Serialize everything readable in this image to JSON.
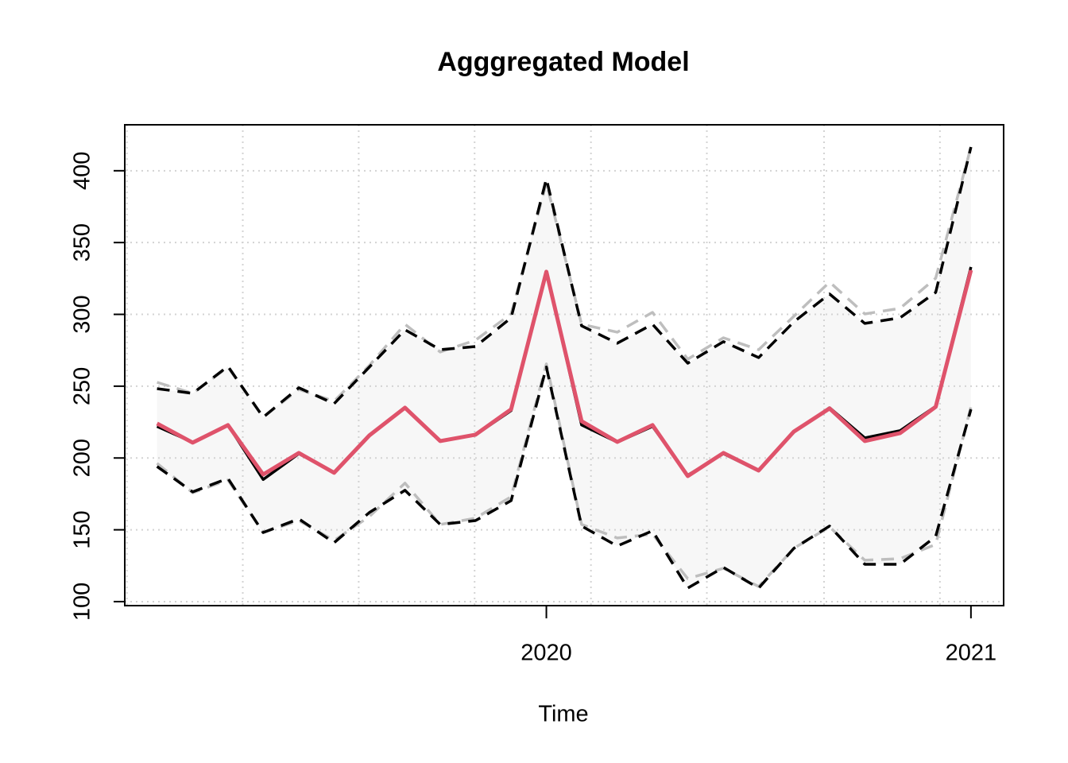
{
  "chart_data": {
    "type": "line",
    "title": "Agggregated Model",
    "x_label": "Time",
    "x": [
      2019.083,
      2019.167,
      2019.25,
      2019.333,
      2019.417,
      2019.5,
      2019.583,
      2019.667,
      2019.75,
      2019.833,
      2019.917,
      2020,
      2020.083,
      2020.167,
      2020.25,
      2020.333,
      2020.417,
      2020.5,
      2020.583,
      2020.667,
      2020.75,
      2020.833,
      2020.917,
      2021
    ],
    "xlim": [
      2019.007,
      2021.077
    ],
    "xticks": [
      2020,
      2021
    ],
    "xgrid": [
      2019.012,
      2019.285,
      2019.558,
      2019.831,
      2020.105,
      2020.378,
      2020.654,
      2020.927
    ],
    "ylim": [
      97.2,
      432
    ],
    "yticks": [
      100,
      150,
      200,
      250,
      300,
      350,
      400
    ],
    "grid": true,
    "band_color": "#f7f7f7",
    "series": [
      {
        "color": "#bebebe",
        "dash": true,
        "values": [
          252.7,
          245,
          263.3,
          228.4,
          247.8,
          239.5,
          264.4,
          293.1,
          273.8,
          282,
          300.3,
          391.6,
          293.1,
          287.6,
          301.4,
          268.8,
          283.7,
          275.4,
          298.7,
          322.5,
          300.3,
          304.2,
          325.2,
          416.5
        ]
      },
      {
        "color": "#bebebe",
        "dash": true,
        "values": [
          196.3,
          175.8,
          184.7,
          148.1,
          156.4,
          142.6,
          159.2,
          182.5,
          153.7,
          158.1,
          173,
          265.5,
          153.7,
          144.3,
          147,
          116,
          123.2,
          110.5,
          137.1,
          152,
          128.8,
          129.9,
          139.8,
          235.6
        ]
      },
      {
        "color": "#000000",
        "dash": true,
        "values": [
          248.3,
          245,
          263.8,
          228.4,
          248.9,
          237.8,
          263.3,
          289.3,
          275.4,
          277.6,
          297.6,
          394.4,
          292,
          279.9,
          293.1,
          266,
          281,
          269.9,
          294.8,
          314.2,
          293.7,
          297.6,
          315.3,
          416.5
        ]
      },
      {
        "color": "#000000",
        "dash": true,
        "values": [
          194.1,
          176.4,
          185.8,
          148.1,
          157.6,
          141,
          162,
          177.5,
          153.7,
          156.4,
          170.3,
          263.3,
          152.6,
          138.7,
          149.3,
          109.4,
          123.8,
          109.4,
          137.1,
          152.6,
          126,
          126,
          145.4,
          233.9
        ]
      },
      {
        "color": "#000000",
        "dash": false,
        "values": [
          222,
          211,
          223,
          185,
          203,
          190,
          216,
          235,
          212,
          216,
          233,
          330,
          223,
          211,
          222,
          188,
          203,
          191,
          218,
          235,
          214,
          219,
          236,
          333
        ]
      },
      {
        "color": "#df536b",
        "dash": false,
        "values": [
          224,
          210.7,
          222.9,
          188.5,
          203.5,
          189.7,
          215.7,
          235,
          211.8,
          216.2,
          233.9,
          329.7,
          225.6,
          211.2,
          222.9,
          187.4,
          203.5,
          191.3,
          218.4,
          234.5,
          211.8,
          217.3,
          235.6,
          330.8
        ]
      }
    ]
  }
}
